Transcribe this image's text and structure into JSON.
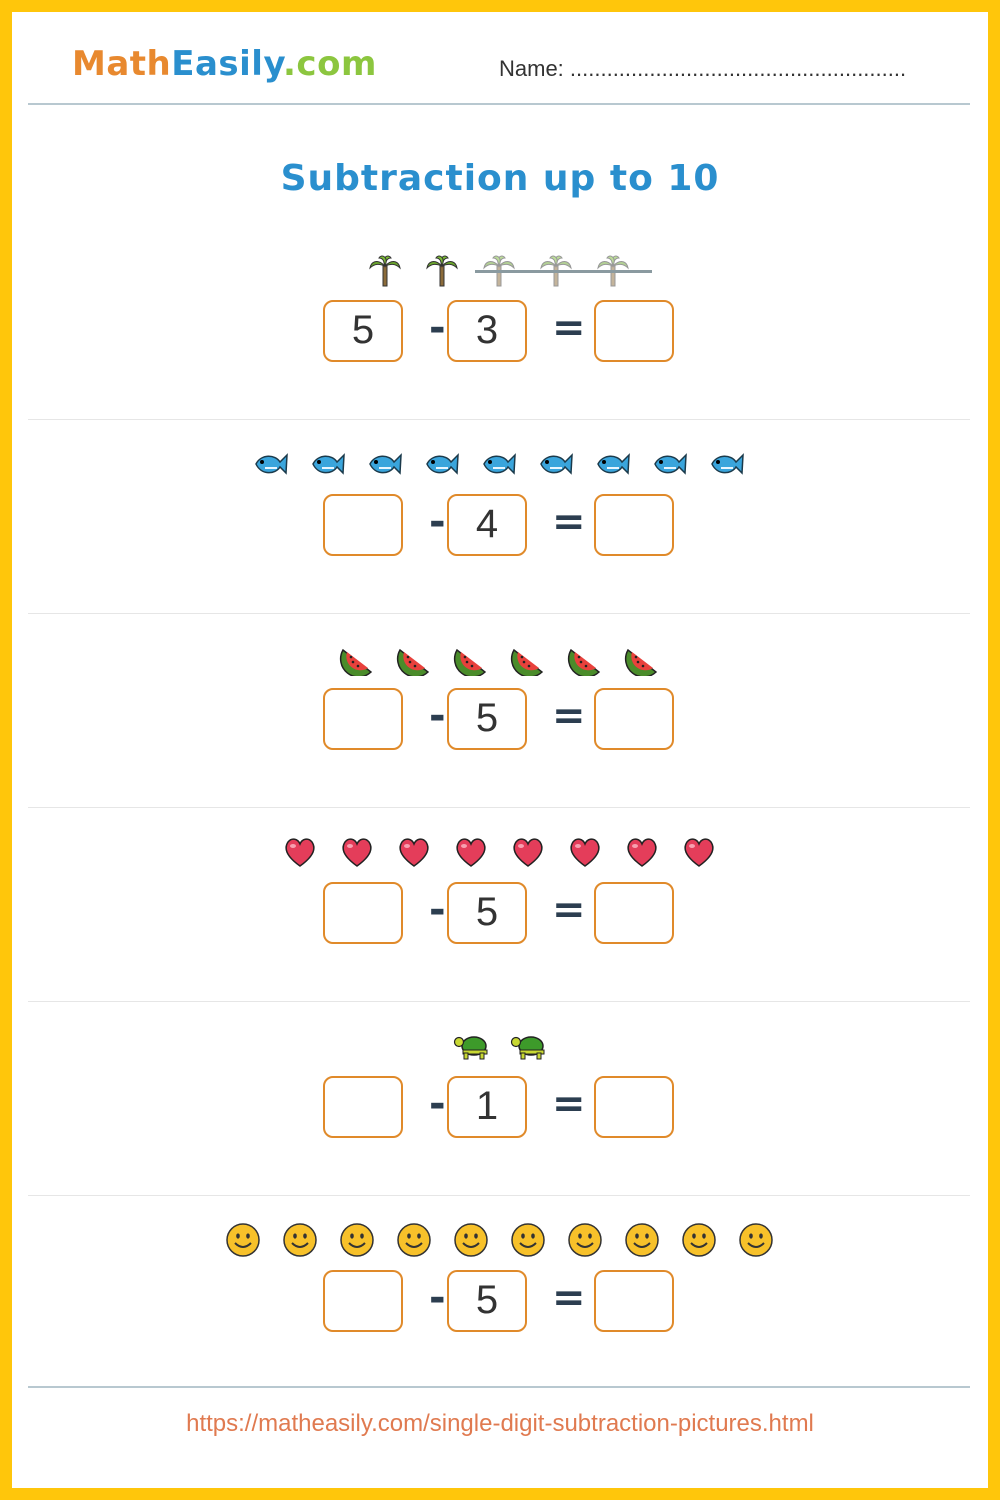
{
  "header": {
    "logo": {
      "part1": "Math",
      "part2": "Easily",
      "part3": ".com"
    },
    "name_label": "Name: ......................................................."
  },
  "title": "Subtraction up to 10",
  "colors": {
    "border": "#FFC60B",
    "box": "#e08a2a",
    "title": "#2a8fce",
    "logo_math": "#e8892f",
    "logo_easily": "#2a8fce",
    "logo_com": "#8cc63f",
    "url": "#e07a50"
  },
  "problems": [
    {
      "icon": "palm-tree-icon",
      "count": 5,
      "crossed": 3,
      "minuend": "5",
      "subtrahend": "3",
      "answer": "",
      "minus": "-",
      "equals": "="
    },
    {
      "icon": "fish-icon",
      "count": 9,
      "crossed": 0,
      "minuend": "",
      "subtrahend": "4",
      "answer": "",
      "minus": "-",
      "equals": "="
    },
    {
      "icon": "watermelon-icon",
      "count": 6,
      "crossed": 0,
      "minuend": "",
      "subtrahend": "5",
      "answer": "",
      "minus": "-",
      "equals": "="
    },
    {
      "icon": "heart-icon",
      "count": 8,
      "crossed": 0,
      "minuend": "",
      "subtrahend": "5",
      "answer": "",
      "minus": "-",
      "equals": "="
    },
    {
      "icon": "turtle-icon",
      "count": 2,
      "crossed": 0,
      "minuend": "",
      "subtrahend": "1",
      "answer": "",
      "minus": "-",
      "equals": "="
    },
    {
      "icon": "smiley-icon",
      "count": 10,
      "crossed": 0,
      "minuend": "",
      "subtrahend": "5",
      "answer": "",
      "minus": "-",
      "equals": "="
    }
  ],
  "footer": {
    "url": "https://matheasily.com/single-digit-subtraction-pictures.html"
  }
}
